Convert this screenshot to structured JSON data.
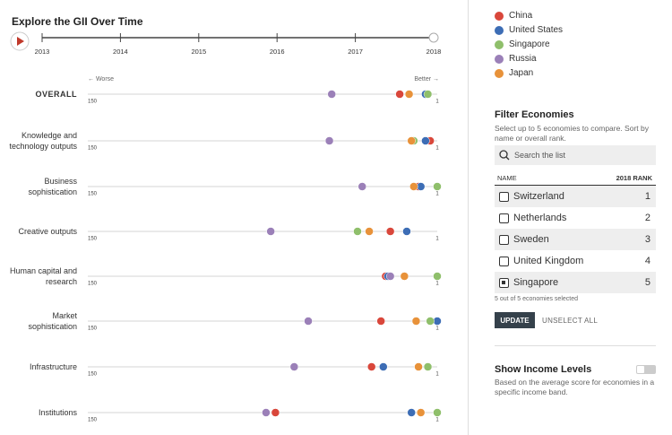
{
  "header": {
    "title": "Explore the GII Over Time",
    "years": [
      "2013",
      "2014",
      "2015",
      "2016",
      "2017",
      "2018"
    ]
  },
  "chart_data": {
    "type": "dot",
    "worse_label": "← Worse",
    "better_label": "Better →",
    "xlim": [
      150,
      1
    ],
    "xticks": [
      150,
      1
    ],
    "categories": [
      "OVERALL",
      "Knowledge and technology outputs",
      "Business sophistication",
      "Creative outputs",
      "Human capital and research",
      "Market sophistication",
      "Infrastructure",
      "Institutions"
    ],
    "series": [
      {
        "name": "China",
        "color": "#d9473b",
        "values": [
          17,
          4,
          9,
          21,
          23,
          25,
          29,
          70
        ]
      },
      {
        "name": "United States",
        "color": "#3d6db5",
        "values": [
          6,
          6,
          8,
          14,
          22,
          1,
          24,
          12
        ]
      },
      {
        "name": "Singapore",
        "color": "#8fbf6b",
        "values": [
          5,
          11,
          1,
          35,
          1,
          4,
          5,
          1
        ]
      },
      {
        "name": "Russia",
        "color": "#9b80b8",
        "values": [
          46,
          47,
          33,
          72,
          21,
          56,
          62,
          74
        ]
      },
      {
        "name": "Japan",
        "color": "#e8923a",
        "values": [
          13,
          12,
          11,
          30,
          15,
          10,
          9,
          8
        ]
      }
    ]
  },
  "filter": {
    "title": "Filter Economies",
    "description": "Select up to 5 economies to compare. Sort by name or overall rank.",
    "search_placeholder": "Search the list",
    "columns": [
      "NAME",
      "2018 RANK"
    ],
    "rows": [
      {
        "name": "Switzerland",
        "rank": 1,
        "checked": false
      },
      {
        "name": "Netherlands",
        "rank": 2,
        "checked": false
      },
      {
        "name": "Sweden",
        "rank": 3,
        "checked": false
      },
      {
        "name": "United Kingdom",
        "rank": 4,
        "checked": false
      },
      {
        "name": "Singapore",
        "rank": 5,
        "checked": true
      }
    ],
    "status": "5 out of 5 economies selected",
    "update": "UPDATE",
    "unselect": "UNSELECT ALL"
  },
  "income": {
    "title": "Show Income Levels",
    "description": "Based on the average score for economies in a specific income band.",
    "enabled": false
  }
}
